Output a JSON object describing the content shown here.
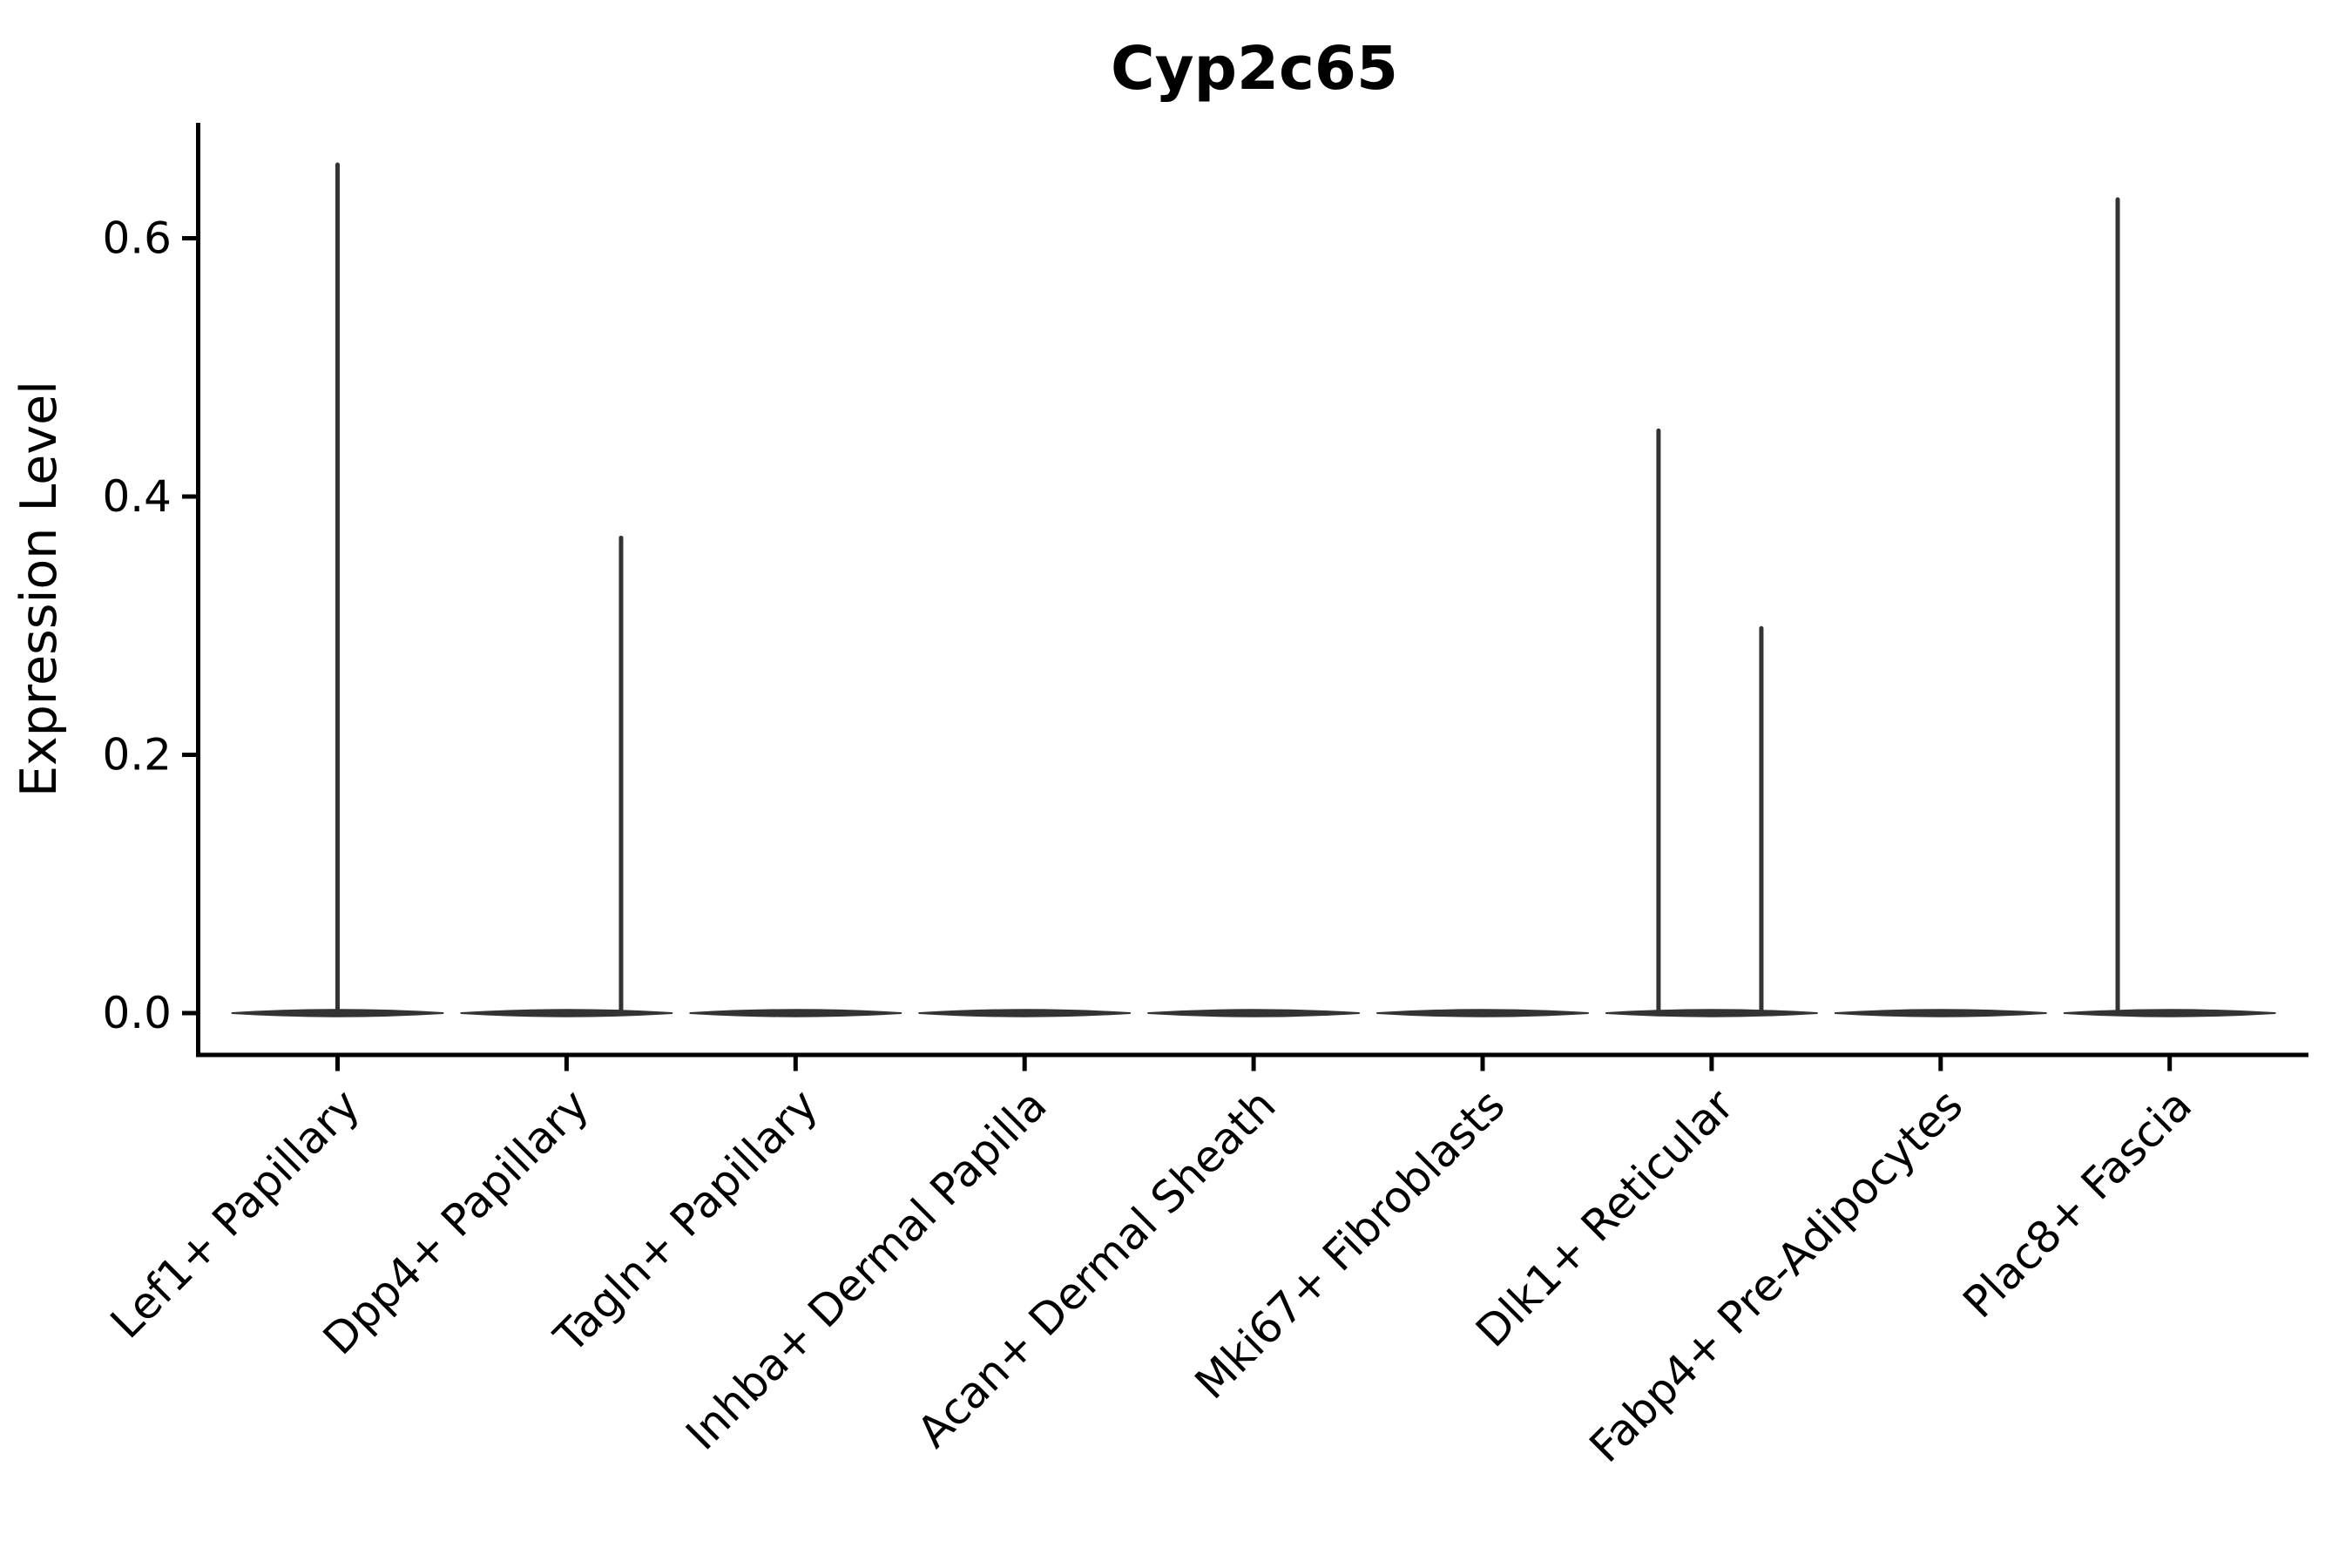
{
  "chart_data": {
    "type": "violin",
    "title": "Cyp2c65",
    "ylabel": "Expression Level",
    "xlabel": "",
    "grid": false,
    "legend_position": "none",
    "background_color": "#ffffff",
    "colors": {
      "violin": "#333333",
      "axis": "#000000",
      "text": "#000000"
    },
    "y_axis": {
      "lim": [
        -0.032,
        0.69
      ],
      "ticks": [
        {
          "label": "0.0",
          "value": 0.0
        },
        {
          "label": "0.2",
          "value": 0.2
        },
        {
          "label": "0.4",
          "value": 0.4
        },
        {
          "label": "0.6",
          "value": 0.6
        }
      ]
    },
    "categories": [
      "Lef1+ Papillary",
      "Dpp4+ Papillary",
      "Tagln+ Papillary",
      "Inhba+ Dermal Papilla",
      "Acan+ Dermal Sheath",
      "Mki67+ Fibroblasts",
      "Dlk1+ Reticular",
      "Fabp4+ Pre-Adipocytes",
      "Plac8+ Fascia"
    ],
    "violins": [
      {
        "category": "Lef1+ Papillary",
        "base_value": 0.0,
        "spikes": [
          {
            "offset_frac": 0.0,
            "value": 0.657
          }
        ]
      },
      {
        "category": "Dpp4+ Papillary",
        "base_value": 0.0,
        "spikes": [
          {
            "offset_frac": 0.238,
            "value": 0.368
          }
        ]
      },
      {
        "category": "Tagln+ Papillary",
        "base_value": 0.0,
        "spikes": []
      },
      {
        "category": "Inhba+ Dermal Papilla",
        "base_value": 0.0,
        "spikes": []
      },
      {
        "category": "Acan+ Dermal Sheath",
        "base_value": 0.0,
        "spikes": []
      },
      {
        "category": "Mki67+ Fibroblasts",
        "base_value": 0.0,
        "spikes": []
      },
      {
        "category": "Dlk1+ Reticular",
        "base_value": 0.0,
        "spikes": [
          {
            "offset_frac": -0.232,
            "value": 0.451
          },
          {
            "offset_frac": 0.217,
            "value": 0.298
          }
        ]
      },
      {
        "category": "Fabp4+ Pre-Adipocytes",
        "base_value": 0.0,
        "spikes": []
      },
      {
        "category": "Plac8+ Fascia",
        "base_value": 0.0,
        "spikes": [
          {
            "offset_frac": -0.227,
            "value": 0.63
          }
        ]
      }
    ]
  }
}
